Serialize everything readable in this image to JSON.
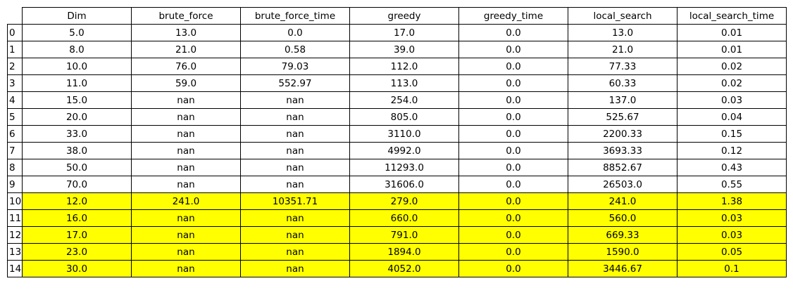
{
  "chart_data": {
    "type": "table",
    "columns": [
      "Dim",
      "brute_force",
      "brute_force_time",
      "greedy",
      "greedy_time",
      "local_search",
      "local_search_time"
    ],
    "index": [
      "0",
      "1",
      "2",
      "3",
      "4",
      "5",
      "6",
      "7",
      "8",
      "9",
      "10",
      "11",
      "12",
      "13",
      "14"
    ],
    "rows": [
      [
        "5.0",
        "13.0",
        "0.0",
        "17.0",
        "0.0",
        "13.0",
        "0.01"
      ],
      [
        "8.0",
        "21.0",
        "0.58",
        "39.0",
        "0.0",
        "21.0",
        "0.01"
      ],
      [
        "10.0",
        "76.0",
        "79.03",
        "112.0",
        "0.0",
        "77.33",
        "0.02"
      ],
      [
        "11.0",
        "59.0",
        "552.97",
        "113.0",
        "0.0",
        "60.33",
        "0.02"
      ],
      [
        "15.0",
        "nan",
        "nan",
        "254.0",
        "0.0",
        "137.0",
        "0.03"
      ],
      [
        "20.0",
        "nan",
        "nan",
        "805.0",
        "0.0",
        "525.67",
        "0.04"
      ],
      [
        "33.0",
        "nan",
        "nan",
        "3110.0",
        "0.0",
        "2200.33",
        "0.15"
      ],
      [
        "38.0",
        "nan",
        "nan",
        "4992.0",
        "0.0",
        "3693.33",
        "0.12"
      ],
      [
        "50.0",
        "nan",
        "nan",
        "11293.0",
        "0.0",
        "8852.67",
        "0.43"
      ],
      [
        "70.0",
        "nan",
        "nan",
        "31606.0",
        "0.0",
        "26503.0",
        "0.55"
      ],
      [
        "12.0",
        "241.0",
        "10351.71",
        "279.0",
        "0.0",
        "241.0",
        "1.38"
      ],
      [
        "16.0",
        "nan",
        "nan",
        "660.0",
        "0.0",
        "560.0",
        "0.03"
      ],
      [
        "17.0",
        "nan",
        "nan",
        "791.0",
        "0.0",
        "669.33",
        "0.03"
      ],
      [
        "23.0",
        "nan",
        "nan",
        "1894.0",
        "0.0",
        "1590.0",
        "0.05"
      ],
      [
        "30.0",
        "nan",
        "nan",
        "4052.0",
        "0.0",
        "3446.67",
        "0.1"
      ]
    ],
    "highlighted_rows": [
      10,
      11,
      12,
      13,
      14
    ],
    "highlight_color": "#ffff00",
    "cell_color": "#ffffff",
    "border_color": "#000000"
  }
}
